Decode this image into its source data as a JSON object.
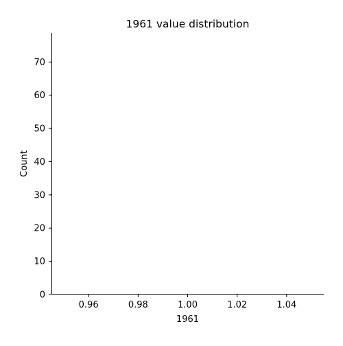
{
  "chart_data": {
    "type": "bar",
    "title": "1961 value distribution",
    "xlabel": "1961",
    "ylabel": "Count",
    "xlim": [
      0.945,
      1.055
    ],
    "ylim": [
      0,
      78.75
    ],
    "x_ticks": [
      0.96,
      0.98,
      1.0,
      1.02,
      1.04
    ],
    "x_tick_labels": [
      "0.96",
      "0.98",
      "1.00",
      "1.02",
      "1.04"
    ],
    "y_ticks": [
      0,
      10,
      20,
      30,
      40,
      50,
      60,
      70
    ],
    "y_tick_labels": [
      "0",
      "10",
      "20",
      "30",
      "40",
      "50",
      "60",
      "70"
    ],
    "bins": [],
    "grid": false,
    "colors": {
      "axis": "#000000",
      "background": "#ffffff",
      "bar": "#1f77b4"
    }
  }
}
